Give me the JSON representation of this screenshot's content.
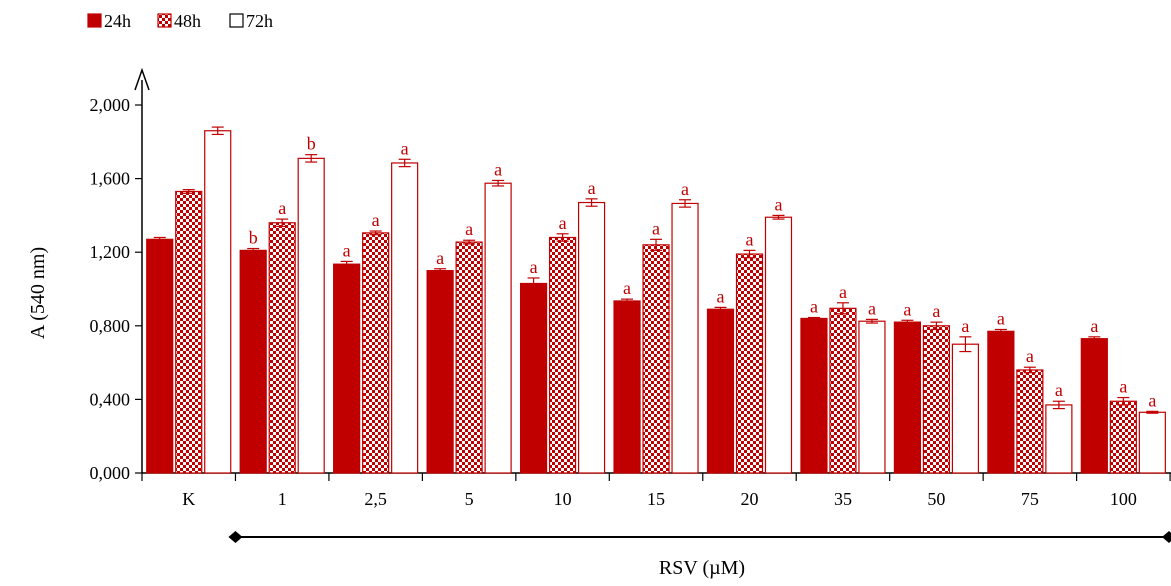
{
  "chart_data": {
    "type": "bar",
    "title": "",
    "xlabel": "RSV (µM)",
    "ylabel": "A (540 nm)",
    "ylim": [
      0,
      2.0
    ],
    "yticks": [
      0,
      0.4,
      0.8,
      1.2,
      1.6,
      2.0
    ],
    "ytick_labels": [
      "0,000",
      "0,400",
      "0,800",
      "1,200",
      "1,600",
      "2,000"
    ],
    "grid": false,
    "legend_position": "top-left",
    "categories": [
      "K",
      "1",
      "2,5",
      "5",
      "10",
      "15",
      "20",
      "35",
      "50",
      "75",
      "100"
    ],
    "series": [
      {
        "name": "24h",
        "fill": "solid",
        "color": "#C00000",
        "values": [
          1.27,
          1.21,
          1.135,
          1.1,
          1.03,
          0.935,
          0.89,
          0.84,
          0.82,
          0.77,
          0.73
        ],
        "errors": [
          0.01,
          0.01,
          0.015,
          0.01,
          0.03,
          0.01,
          0.01,
          0.005,
          0.01,
          0.01,
          0.01
        ],
        "labels": [
          "",
          "b",
          "a",
          "a",
          "a",
          "a",
          "a",
          "a",
          "a",
          "a",
          "a"
        ]
      },
      {
        "name": "48h",
        "fill": "checker",
        "color": "#C00000",
        "values": [
          1.53,
          1.36,
          1.305,
          1.255,
          1.28,
          1.24,
          1.19,
          0.895,
          0.8,
          0.56,
          0.39
        ],
        "errors": [
          0.01,
          0.02,
          0.01,
          0.01,
          0.02,
          0.03,
          0.02,
          0.03,
          0.02,
          0.015,
          0.02
        ],
        "labels": [
          "",
          "a",
          "a",
          "a",
          "a",
          "a",
          "a",
          "a",
          "a",
          "a",
          "a"
        ]
      },
      {
        "name": "72h",
        "fill": "none",
        "color": "#C00000",
        "values": [
          1.86,
          1.71,
          1.685,
          1.575,
          1.47,
          1.465,
          1.39,
          0.825,
          0.7,
          0.37,
          0.33
        ],
        "errors": [
          0.02,
          0.02,
          0.02,
          0.015,
          0.02,
          0.02,
          0.01,
          0.01,
          0.04,
          0.02,
          0.005
        ],
        "labels": [
          "",
          "b",
          "a",
          "a",
          "a",
          "a",
          "a",
          "a",
          "a",
          "a",
          "a"
        ]
      }
    ]
  }
}
